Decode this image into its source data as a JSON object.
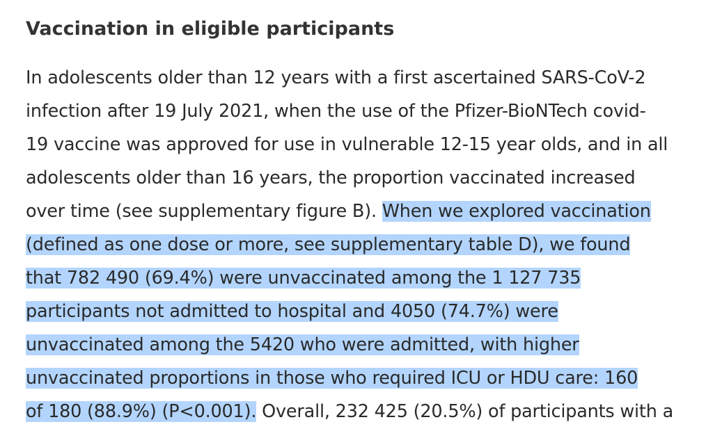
{
  "heading": "Vaccination in eligible participants",
  "lines": [
    "In adolescents older than 12 years with a first ascertained SARS-CoV-2",
    "infection after 19 July 2021, when the use of the Pfizer-BioNTech covid-",
    "19 vaccine was approved for use in vulnerable 12-15 year olds, and in all",
    "adolescents older than 16 years, the proportion vaccinated increased",
    "over time (see supplementary figure B). ",
    "When we explored vaccination",
    "(defined as one dose or more, see supplementary table D), we found",
    "that 782 490 (69.4%) were unvaccinated among the 1 127 735",
    "participants not admitted to hospital and 4050 (74.7%) were",
    "unvaccinated among the 5420 who were admitted, with higher",
    "unvaccinated proportions in those who required ICU or HDU care: 160",
    "of 180 (88.9%) (P<0.001).",
    " Overall, 232 425 (20.5%) of participants with a"
  ],
  "selection_color": "#b3d5fd"
}
